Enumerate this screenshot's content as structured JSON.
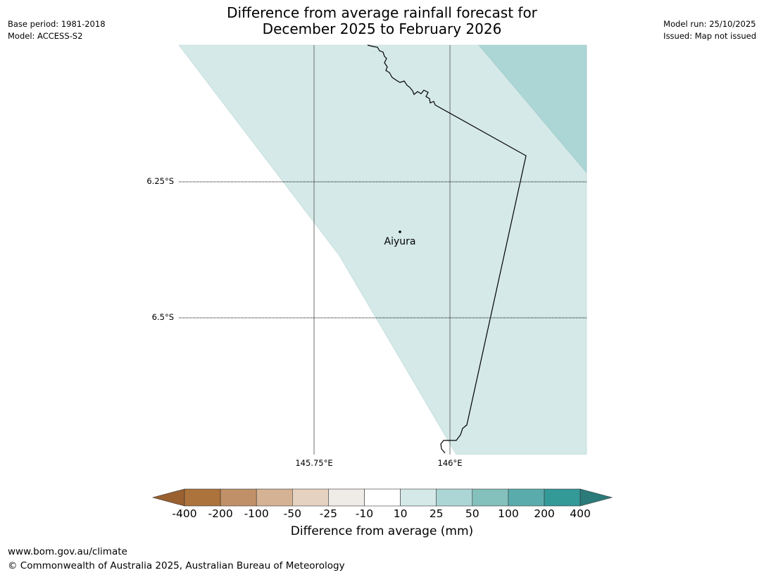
{
  "header": {
    "title_line1": "Difference from average rainfall forecast for",
    "title_line2": "December 2025 to February 2026",
    "base_period": "Base period: 1981-2018",
    "model": "Model: ACCESS-S2",
    "model_run": "Model run: 25/10/2025",
    "issued": "Issued: Map not issued"
  },
  "map": {
    "lat_labels": [
      "6.25°S",
      "6.5°S"
    ],
    "lon_labels": [
      "145.75°E",
      "146°E"
    ],
    "places": [
      {
        "name": "Aiyura"
      }
    ],
    "region_colors": {
      "light": "#d4e9e8",
      "mid": "#acd6d5"
    }
  },
  "colorbar": {
    "title": "Difference from average (mm)",
    "ticks": [
      "-400",
      "-200",
      "-100",
      "-50",
      "-25",
      "-10",
      "10",
      "25",
      "50",
      "100",
      "200",
      "400"
    ],
    "colors": [
      "#9a6030",
      "#ad733c",
      "#c09168",
      "#d4b293",
      "#e6d2c0",
      "#efebe7",
      "#ffffff",
      "#d4e9e8",
      "#acd6d5",
      "#84c0bc",
      "#5aacac",
      "#339a98",
      "#2a7b79"
    ]
  },
  "footer": {
    "url": "www.bom.gov.au/climate",
    "copyright": "© Commonwealth of Australia 2025, Australian Bureau of Meteorology"
  }
}
